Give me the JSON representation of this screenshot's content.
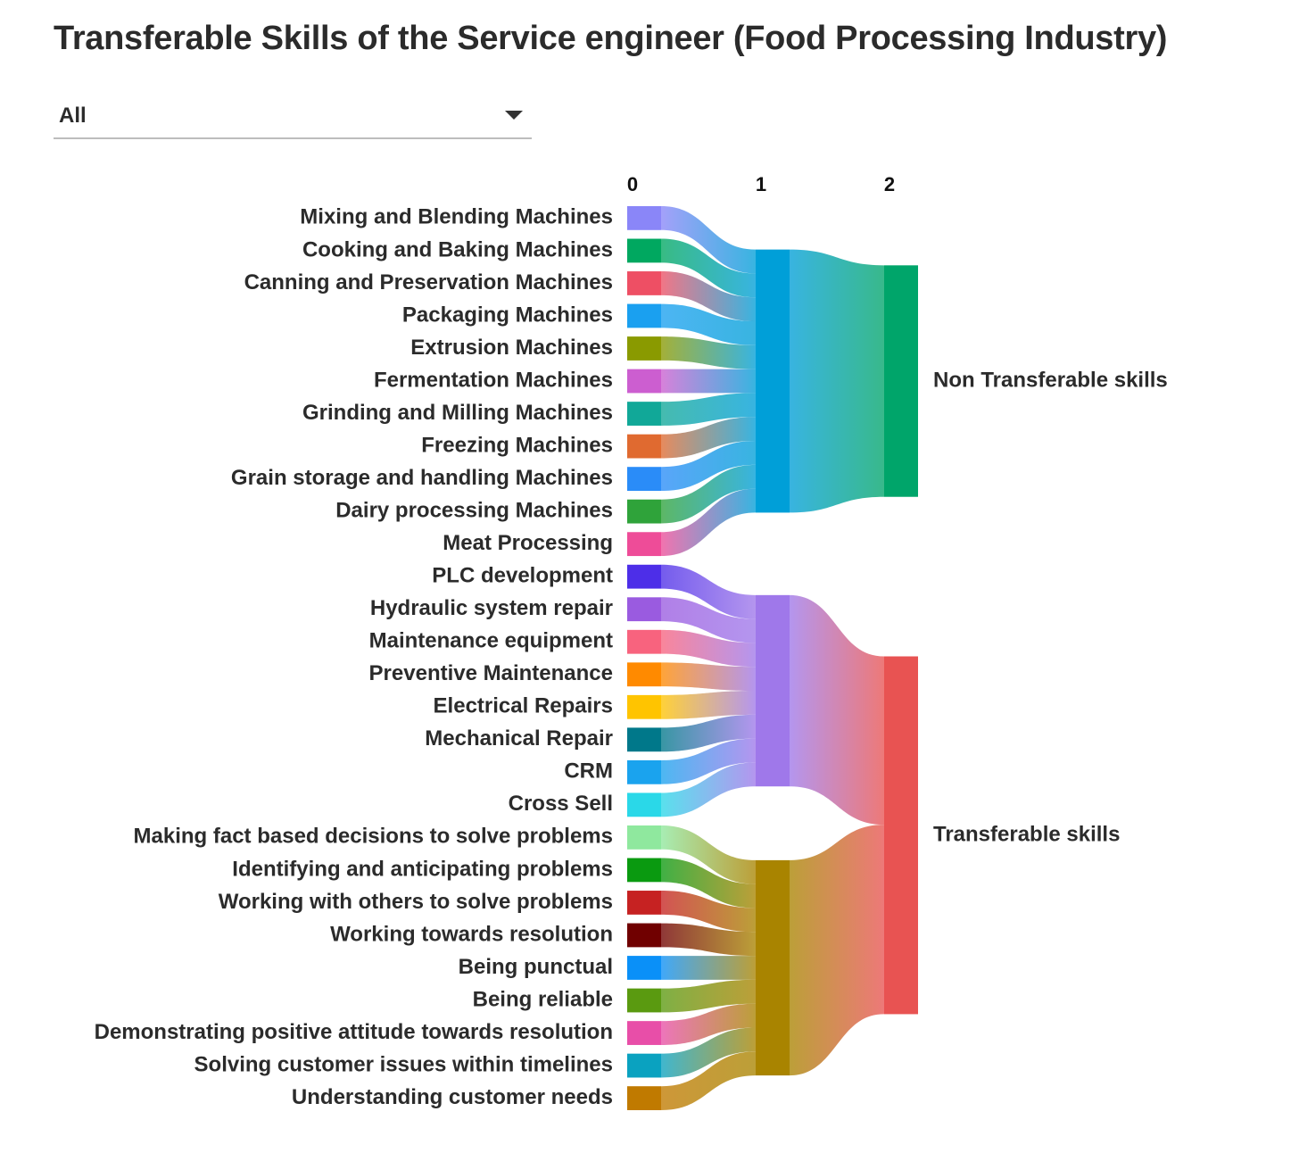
{
  "title": "Transferable Skills of the Service engineer (Food Processing Industry)",
  "filter": {
    "selected": "All"
  },
  "chart_data": {
    "type": "sankey",
    "column_labels": [
      "0",
      "1",
      "2"
    ],
    "nodes": [
      {
        "id": 0,
        "label": "Mixing and Blending Machines",
        "color": "#8a86f8"
      },
      {
        "id": 1,
        "label": "Cooking and Baking Machines",
        "color": "#00a860"
      },
      {
        "id": 2,
        "label": "Canning and Preservation Machines",
        "color": "#ee4f64"
      },
      {
        "id": 3,
        "label": "Packaging Machines",
        "color": "#1aa0f0"
      },
      {
        "id": 4,
        "label": "Extrusion Machines",
        "color": "#8a9a00"
      },
      {
        "id": 5,
        "label": "Fermentation Machines",
        "color": "#cc5ed0"
      },
      {
        "id": 6,
        "label": "Grinding and Milling Machines",
        "color": "#11a898"
      },
      {
        "id": 7,
        "label": "Freezing Machines",
        "color": "#e06a30"
      },
      {
        "id": 8,
        "label": "Grain storage and handling Machines",
        "color": "#2a8cf8"
      },
      {
        "id": 9,
        "label": "Dairy processing Machines",
        "color": "#2fa33a"
      },
      {
        "id": 10,
        "label": "Meat Processing",
        "color": "#ee4c98"
      },
      {
        "id": 11,
        "label": "PLC development",
        "color": "#4d2ee8"
      },
      {
        "id": 12,
        "label": "Hydraulic system repair",
        "color": "#9a5be0"
      },
      {
        "id": 13,
        "label": "Maintenance equipment",
        "color": "#f8637e"
      },
      {
        "id": 14,
        "label": "Preventive Maintenance",
        "color": "#ff8a00"
      },
      {
        "id": 15,
        "label": "Electrical Repairs",
        "color": "#ffc400"
      },
      {
        "id": 16,
        "label": "Mechanical Repair",
        "color": "#00788a"
      },
      {
        "id": 17,
        "label": "CRM",
        "color": "#1aa3ee"
      },
      {
        "id": 18,
        "label": "Cross Sell",
        "color": "#2ad8e8"
      },
      {
        "id": 19,
        "label": "Making fact based decisions to solve problems",
        "color": "#8fe89e"
      },
      {
        "id": 20,
        "label": "Identifying and anticipating problems",
        "color": "#0a9a10"
      },
      {
        "id": 21,
        "label": "Working with others to solve problems",
        "color": "#c62222"
      },
      {
        "id": 22,
        "label": "Working towards resolution",
        "color": "#700000"
      },
      {
        "id": 23,
        "label": "Being punctual",
        "color": "#0a90f8"
      },
      {
        "id": 24,
        "label": "Being reliable",
        "color": "#5a9a10"
      },
      {
        "id": 25,
        "label": "Demonstrating positive attitude towards resolution",
        "color": "#e84ea8"
      },
      {
        "id": 26,
        "label": "Solving customer issues within timelines",
        "color": "#0aa2c0"
      },
      {
        "id": 27,
        "label": "Understanding customer needs",
        "color": "#c07a00"
      },
      {
        "id": 28,
        "label": "",
        "color": "#009fd8"
      },
      {
        "id": 29,
        "label": "",
        "color": "#9f78ea"
      },
      {
        "id": 30,
        "label": "",
        "color": "#a98400"
      },
      {
        "id": 31,
        "label": "Non Transferable skills",
        "color": "#00a56a"
      },
      {
        "id": 32,
        "label": "Transferable skills",
        "color": "#e85352"
      }
    ],
    "links": [
      {
        "source": 0,
        "target": 28,
        "value": 1
      },
      {
        "source": 1,
        "target": 28,
        "value": 1
      },
      {
        "source": 2,
        "target": 28,
        "value": 1
      },
      {
        "source": 3,
        "target": 28,
        "value": 1
      },
      {
        "source": 4,
        "target": 28,
        "value": 1
      },
      {
        "source": 5,
        "target": 28,
        "value": 1
      },
      {
        "source": 6,
        "target": 28,
        "value": 1
      },
      {
        "source": 7,
        "target": 28,
        "value": 1
      },
      {
        "source": 8,
        "target": 28,
        "value": 1
      },
      {
        "source": 9,
        "target": 28,
        "value": 1
      },
      {
        "source": 10,
        "target": 28,
        "value": 1
      },
      {
        "source": 11,
        "target": 29,
        "value": 1
      },
      {
        "source": 12,
        "target": 29,
        "value": 1
      },
      {
        "source": 13,
        "target": 29,
        "value": 1
      },
      {
        "source": 14,
        "target": 29,
        "value": 1
      },
      {
        "source": 15,
        "target": 29,
        "value": 1
      },
      {
        "source": 16,
        "target": 29,
        "value": 1
      },
      {
        "source": 17,
        "target": 29,
        "value": 1
      },
      {
        "source": 18,
        "target": 29,
        "value": 1
      },
      {
        "source": 19,
        "target": 30,
        "value": 1
      },
      {
        "source": 20,
        "target": 30,
        "value": 1
      },
      {
        "source": 21,
        "target": 30,
        "value": 1
      },
      {
        "source": 22,
        "target": 30,
        "value": 1
      },
      {
        "source": 23,
        "target": 30,
        "value": 1
      },
      {
        "source": 24,
        "target": 30,
        "value": 1
      },
      {
        "source": 25,
        "target": 30,
        "value": 1
      },
      {
        "source": 26,
        "target": 30,
        "value": 1
      },
      {
        "source": 27,
        "target": 30,
        "value": 1
      },
      {
        "source": 28,
        "target": 31,
        "value": 11
      },
      {
        "source": 29,
        "target": 32,
        "value": 8
      },
      {
        "source": 30,
        "target": 32,
        "value": 9
      }
    ]
  }
}
